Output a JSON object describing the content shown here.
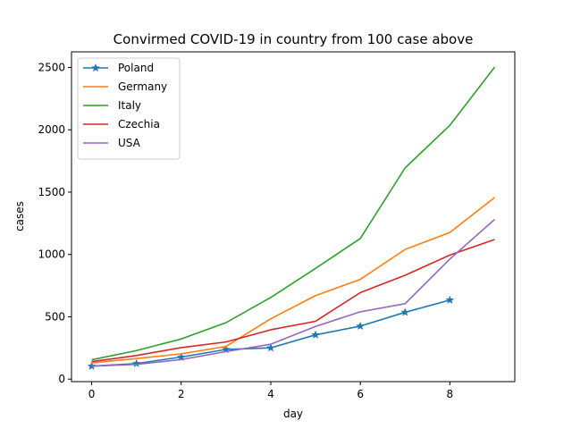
{
  "chart_data": {
    "type": "line",
    "title": "Convirmed COVID-19 in country from 100 case above",
    "xlabel": "day",
    "ylabel": "cases",
    "xlim": [
      -0.45,
      9.45
    ],
    "ylim": [
      -20,
      2625
    ],
    "xticks": [
      0,
      2,
      4,
      6,
      8
    ],
    "yticks": [
      0,
      500,
      1000,
      1500,
      2000,
      2500
    ],
    "grid": false,
    "legend_position": "top-left",
    "series": [
      {
        "name": "Poland",
        "color": "#1f77b4",
        "marker": "star",
        "x": [
          0,
          1,
          2,
          3,
          4,
          5,
          6,
          7,
          8
        ],
        "y": [
          104,
          125,
          177,
          238,
          251,
          355,
          425,
          536,
          634
        ]
      },
      {
        "name": "Germany",
        "color": "#ff7f0e",
        "marker": "none",
        "x": [
          0,
          1,
          2,
          3,
          4,
          5,
          6,
          7,
          8,
          9
        ],
        "y": [
          130,
          165,
          203,
          262,
          484,
          670,
          800,
          1040,
          1176,
          1457
        ]
      },
      {
        "name": "Italy",
        "color": "#2ca02c",
        "marker": "none",
        "x": [
          0,
          1,
          2,
          3,
          4,
          5,
          6,
          7,
          8,
          9
        ],
        "y": [
          155,
          229,
          322,
          453,
          655,
          888,
          1128,
          1694,
          2036,
          2502
        ]
      },
      {
        "name": "Czechia",
        "color": "#d62728",
        "marker": "none",
        "x": [
          0,
          1,
          2,
          3,
          4,
          5,
          6,
          7,
          8,
          9
        ],
        "y": [
          141,
          189,
          253,
          298,
          396,
          464,
          694,
          833,
          995,
          1120
        ]
      },
      {
        "name": "USA",
        "color": "#9467bd",
        "marker": "none",
        "x": [
          0,
          1,
          2,
          3,
          4,
          5,
          6,
          7,
          8,
          9
        ],
        "y": [
          104,
          118,
          157,
          221,
          280,
          423,
          540,
          605,
          963,
          1281
        ]
      }
    ]
  }
}
